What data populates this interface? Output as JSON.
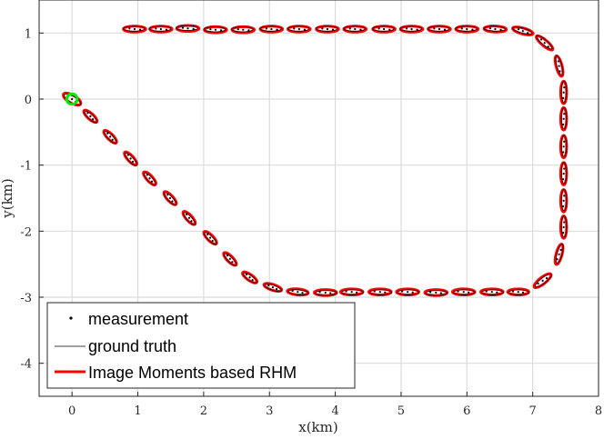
{
  "chart_data": {
    "type": "scatter",
    "title": "",
    "xlabel": "x(km)",
    "ylabel": "y(km)",
    "xlim": [
      -0.5,
      8
    ],
    "ylim": [
      -4.5,
      1.5
    ],
    "xticks": [
      0,
      1,
      2,
      3,
      4,
      5,
      6,
      7,
      8
    ],
    "yticks": [
      1,
      0,
      -1,
      -2,
      -3,
      -4
    ],
    "grid": true,
    "legend_position": "bottom-left",
    "colors": {
      "estimate": "#ff0000",
      "start_marker": "#00ee00",
      "ground_truth": "#000000",
      "measurement": "#000000",
      "grid": "#dcdcdc",
      "axis": "#262626"
    },
    "series": [
      {
        "name": "measurement",
        "style": "dots"
      },
      {
        "name": "ground truth",
        "style": "thin black ellipse outline"
      },
      {
        "name": "Image Moments based RHM",
        "style": "red ellipse"
      }
    ],
    "start_marker": {
      "x": 0.0,
      "y": 0.0,
      "radius_km": 0.08
    },
    "ellipses": [
      {
        "x": 0.0,
        "y": 0.0,
        "angle": -30,
        "a": 0.15,
        "b": 0.06
      },
      {
        "x": 0.28,
        "y": -0.26,
        "angle": -42,
        "a": 0.13,
        "b": 0.045
      },
      {
        "x": 0.58,
        "y": -0.57,
        "angle": -45,
        "a": 0.13,
        "b": 0.045
      },
      {
        "x": 0.89,
        "y": -0.9,
        "angle": -47,
        "a": 0.13,
        "b": 0.045
      },
      {
        "x": 1.18,
        "y": -1.2,
        "angle": -47,
        "a": 0.13,
        "b": 0.045
      },
      {
        "x": 1.49,
        "y": -1.5,
        "angle": -47,
        "a": 0.13,
        "b": 0.045
      },
      {
        "x": 1.78,
        "y": -1.8,
        "angle": -47,
        "a": 0.13,
        "b": 0.045
      },
      {
        "x": 2.1,
        "y": -2.1,
        "angle": -45,
        "a": 0.13,
        "b": 0.045
      },
      {
        "x": 2.4,
        "y": -2.42,
        "angle": -45,
        "a": 0.13,
        "b": 0.045
      },
      {
        "x": 2.7,
        "y": -2.7,
        "angle": -35,
        "a": 0.13,
        "b": 0.045
      },
      {
        "x": 3.05,
        "y": -2.85,
        "angle": -18,
        "a": 0.14,
        "b": 0.045
      },
      {
        "x": 3.43,
        "y": -2.92,
        "angle": -5,
        "a": 0.16,
        "b": 0.045
      },
      {
        "x": 3.85,
        "y": -2.93,
        "angle": 0,
        "a": 0.17,
        "b": 0.045
      },
      {
        "x": 4.25,
        "y": -2.92,
        "angle": 0,
        "a": 0.17,
        "b": 0.045
      },
      {
        "x": 4.68,
        "y": -2.92,
        "angle": 0,
        "a": 0.17,
        "b": 0.045
      },
      {
        "x": 5.1,
        "y": -2.92,
        "angle": 0,
        "a": 0.17,
        "b": 0.045
      },
      {
        "x": 5.53,
        "y": -2.93,
        "angle": 0,
        "a": 0.17,
        "b": 0.045
      },
      {
        "x": 5.95,
        "y": -2.92,
        "angle": 0,
        "a": 0.17,
        "b": 0.045
      },
      {
        "x": 6.38,
        "y": -2.92,
        "angle": 0,
        "a": 0.17,
        "b": 0.045
      },
      {
        "x": 6.78,
        "y": -2.92,
        "angle": 0,
        "a": 0.16,
        "b": 0.045
      },
      {
        "x": 7.15,
        "y": -2.75,
        "angle": 38,
        "a": 0.16,
        "b": 0.05
      },
      {
        "x": 7.4,
        "y": -2.35,
        "angle": 75,
        "a": 0.16,
        "b": 0.045
      },
      {
        "x": 7.47,
        "y": -1.94,
        "angle": 90,
        "a": 0.17,
        "b": 0.045
      },
      {
        "x": 7.47,
        "y": -1.54,
        "angle": 90,
        "a": 0.17,
        "b": 0.045
      },
      {
        "x": 7.47,
        "y": -1.13,
        "angle": 90,
        "a": 0.17,
        "b": 0.045
      },
      {
        "x": 7.47,
        "y": -0.72,
        "angle": 90,
        "a": 0.17,
        "b": 0.045
      },
      {
        "x": 7.47,
        "y": -0.3,
        "angle": 90,
        "a": 0.17,
        "b": 0.045
      },
      {
        "x": 7.47,
        "y": 0.1,
        "angle": 90,
        "a": 0.17,
        "b": 0.045
      },
      {
        "x": 7.4,
        "y": 0.5,
        "angle": 105,
        "a": 0.16,
        "b": 0.045
      },
      {
        "x": 7.18,
        "y": 0.85,
        "angle": 140,
        "a": 0.16,
        "b": 0.045
      },
      {
        "x": 6.85,
        "y": 1.03,
        "angle": 165,
        "a": 0.16,
        "b": 0.045
      },
      {
        "x": 6.43,
        "y": 1.06,
        "angle": 178,
        "a": 0.17,
        "b": 0.045
      },
      {
        "x": 6.0,
        "y": 1.06,
        "angle": 180,
        "a": 0.17,
        "b": 0.045
      },
      {
        "x": 5.58,
        "y": 1.06,
        "angle": 180,
        "a": 0.17,
        "b": 0.045
      },
      {
        "x": 5.16,
        "y": 1.06,
        "angle": 180,
        "a": 0.17,
        "b": 0.045
      },
      {
        "x": 4.74,
        "y": 1.06,
        "angle": 180,
        "a": 0.17,
        "b": 0.045
      },
      {
        "x": 4.3,
        "y": 1.06,
        "angle": 180,
        "a": 0.17,
        "b": 0.045
      },
      {
        "x": 3.88,
        "y": 1.06,
        "angle": 180,
        "a": 0.17,
        "b": 0.045
      },
      {
        "x": 3.45,
        "y": 1.06,
        "angle": 180,
        "a": 0.17,
        "b": 0.045
      },
      {
        "x": 3.03,
        "y": 1.06,
        "angle": 180,
        "a": 0.17,
        "b": 0.045
      },
      {
        "x": 2.6,
        "y": 1.05,
        "angle": 180,
        "a": 0.17,
        "b": 0.045
      },
      {
        "x": 2.18,
        "y": 1.05,
        "angle": 180,
        "a": 0.17,
        "b": 0.045
      },
      {
        "x": 1.76,
        "y": 1.07,
        "angle": 180,
        "a": 0.17,
        "b": 0.045
      },
      {
        "x": 1.35,
        "y": 1.06,
        "angle": 180,
        "a": 0.17,
        "b": 0.045
      },
      {
        "x": 0.95,
        "y": 1.06,
        "angle": 180,
        "a": 0.17,
        "b": 0.045
      }
    ]
  }
}
